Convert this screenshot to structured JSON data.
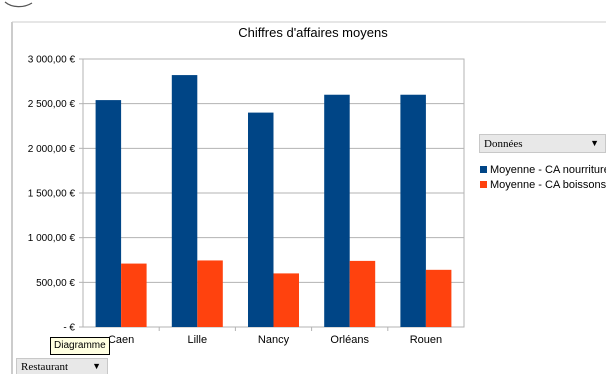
{
  "chart_data": {
    "type": "bar",
    "title": "Chiffres d'affaires moyens",
    "categories": [
      "Caen",
      "Lille",
      "Nancy",
      "Orléans",
      "Rouen"
    ],
    "series": [
      {
        "name": "Moyenne - CA nourriture",
        "color": "#004586",
        "values": [
          2540,
          2820,
          2400,
          2600,
          2600
        ]
      },
      {
        "name": "Moyenne - CA boissons",
        "color": "#ff420e",
        "values": [
          710,
          745,
          600,
          740,
          640
        ]
      }
    ],
    "ylim": [
      0,
      3000
    ],
    "yticks": [
      0,
      500,
      1000,
      1500,
      2000,
      2500,
      3000
    ],
    "ytick_labels": [
      "- €",
      "500,00 €",
      "1 000,00 €",
      "1 500,00 €",
      "2 000,00 €",
      "2 500,00 €",
      "3 000,00 €"
    ],
    "grid": true,
    "legend_position": "right"
  },
  "fields": {
    "data_field_label": "Données",
    "row_field_label": "Restaurant"
  },
  "tooltip": {
    "text": "Diagramme"
  }
}
